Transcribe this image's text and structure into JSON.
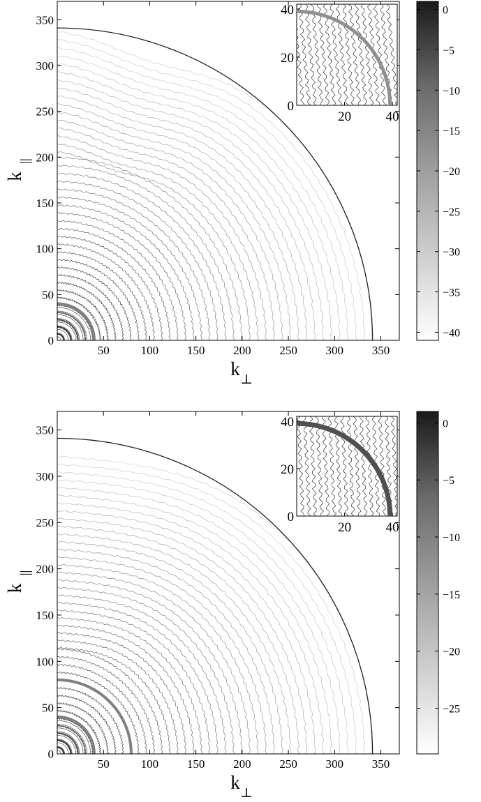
{
  "chart_data": [
    {
      "type": "contour",
      "title": "",
      "xlabel": "k",
      "xlabel_sub": "⊥",
      "ylabel": "k",
      "ylabel_sub": "||",
      "xlim": [
        0,
        370
      ],
      "ylim": [
        0,
        370
      ],
      "x_ticks": [
        "50",
        "100",
        "150",
        "200",
        "250",
        "300",
        "350"
      ],
      "y_ticks": [
        "0",
        "50",
        "100",
        "150",
        "200",
        "250",
        "300",
        "350"
      ],
      "colormap": "gray",
      "colorbar": {
        "ticks": [
          "0",
          "−5",
          "−10",
          "−15",
          "−20",
          "−25",
          "−30",
          "−35",
          "−40"
        ],
        "range": [
          -41,
          1
        ]
      },
      "boundary_radius": 341,
      "inner_circles": [
        40
      ],
      "bump": {
        "center_angle_deg": 72,
        "width_deg": 14,
        "min_radius": 200
      },
      "contour_levels": 40,
      "inset": {
        "xlim": [
          0,
          42
        ],
        "ylim": [
          0,
          42
        ],
        "x_ticks": [
          "20",
          "40"
        ],
        "y_ticks": [
          "0",
          "20",
          "40"
        ],
        "circle_radius": 39
      }
    },
    {
      "type": "contour",
      "title": "",
      "xlabel": "k",
      "xlabel_sub": "⊥",
      "ylabel": "k",
      "ylabel_sub": "||",
      "xlim": [
        0,
        370
      ],
      "ylim": [
        0,
        370
      ],
      "x_ticks": [
        "50",
        "100",
        "150",
        "200",
        "250",
        "300",
        "350"
      ],
      "y_ticks": [
        "0",
        "50",
        "100",
        "150",
        "200",
        "250",
        "300",
        "350"
      ],
      "colormap": "gray",
      "colorbar": {
        "ticks": [
          "0",
          "−5",
          "−10",
          "−15",
          "−20",
          "−25"
        ],
        "range": [
          -29,
          1
        ]
      },
      "boundary_radius": 341,
      "inner_circles": [
        40,
        80
      ],
      "bump": {
        "center_angle_deg": 85,
        "width_deg": 25,
        "min_radius": 120
      },
      "contour_levels": 40,
      "inset": {
        "xlim": [
          0,
          42
        ],
        "ylim": [
          0,
          42
        ],
        "x_ticks": [
          "20",
          "40"
        ],
        "y_ticks": [
          "0",
          "20",
          "40"
        ],
        "circle_radius": 39
      }
    }
  ]
}
